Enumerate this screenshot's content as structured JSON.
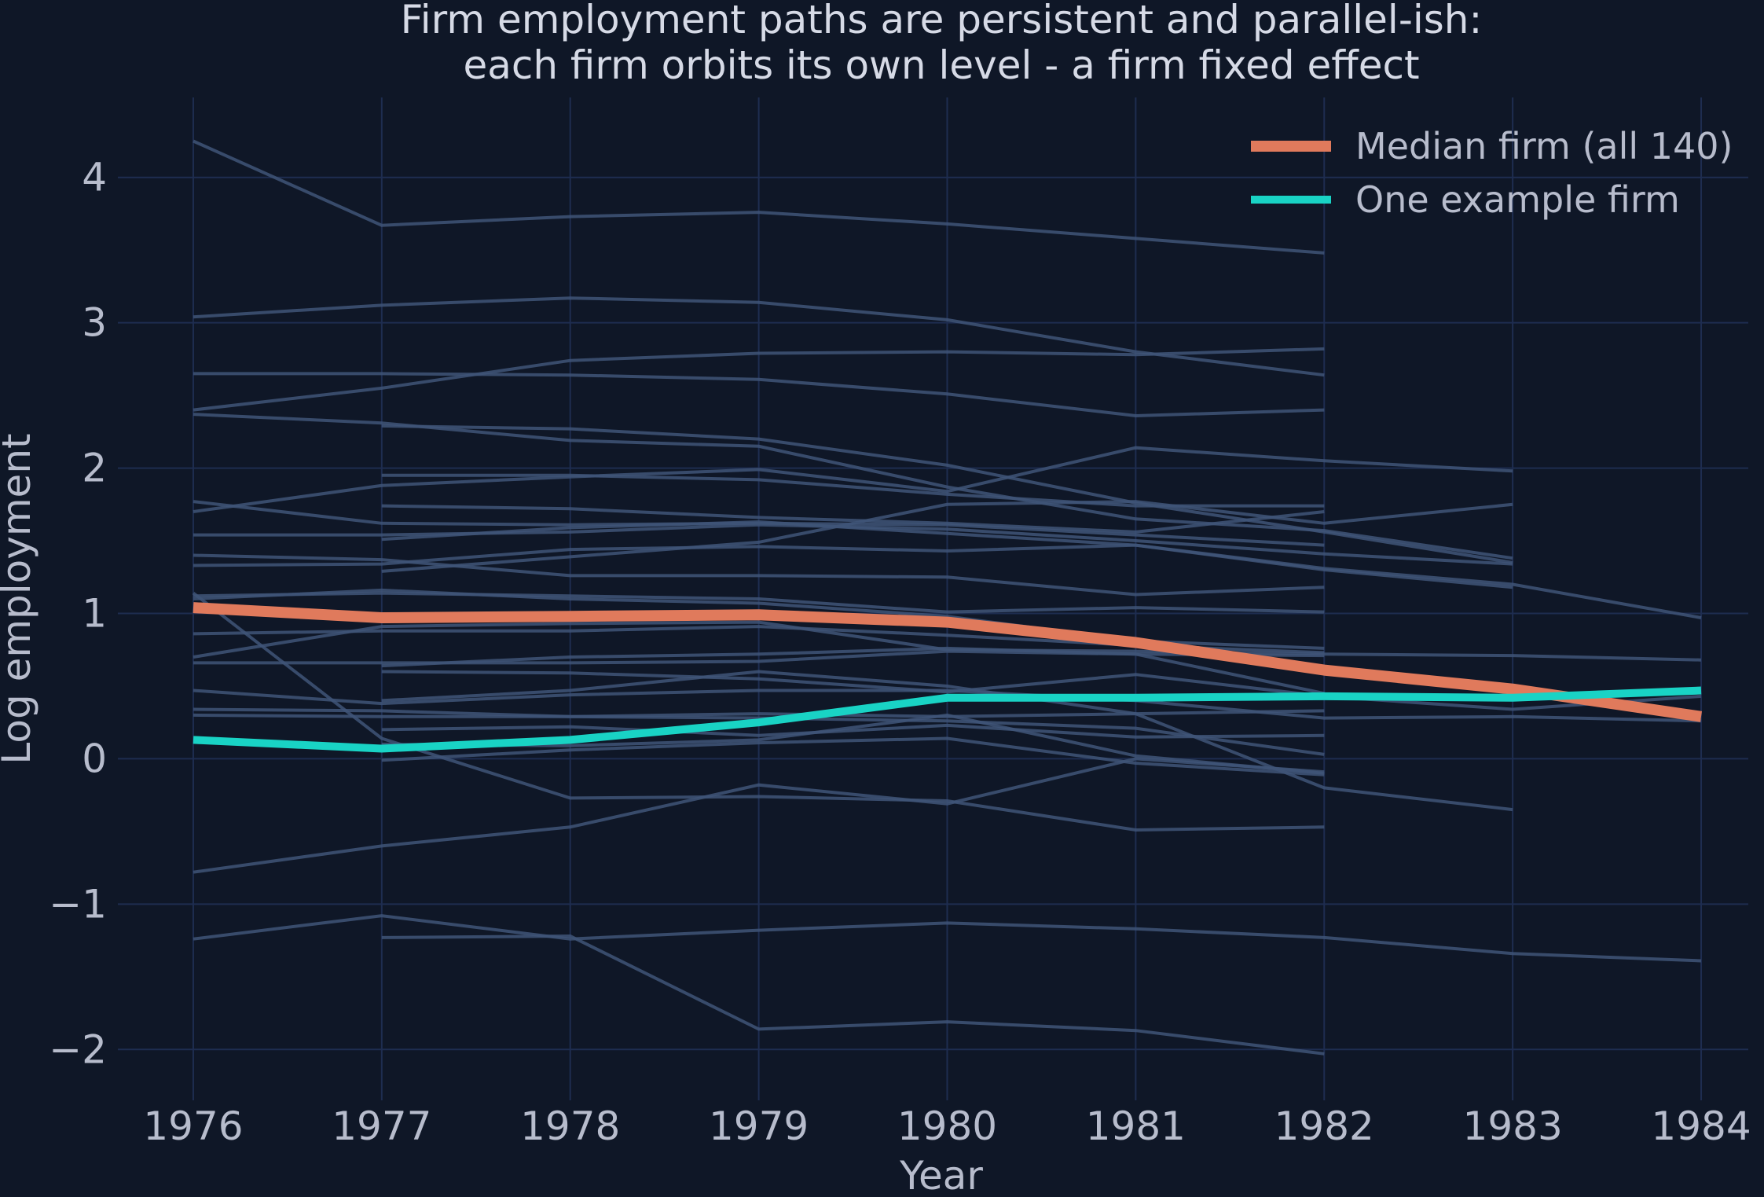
{
  "chart_data": {
    "type": "line",
    "title_lines": [
      "Firm employment paths are persistent and parallel-ish:",
      "each firm orbits its own level - a firm fixed effect"
    ],
    "xlabel": "Year",
    "ylabel": "Log employment",
    "x_ticks": [
      "1976",
      "1977",
      "1978",
      "1979",
      "1980",
      "1981",
      "1982",
      "1983",
      "1984"
    ],
    "y_ticks": [
      4,
      3,
      2,
      1,
      0,
      -1,
      -2
    ],
    "y_tick_labels": [
      "4",
      "3",
      "2",
      "1",
      "0",
      "−1",
      "−2"
    ],
    "xlim": [
      1975.6,
      1984.25
    ],
    "ylim": [
      -2.35,
      4.55
    ],
    "grid": true,
    "legend_position": "top-right",
    "colors": {
      "background": "#0f1727",
      "grid": "#1e2d50",
      "firm_lines": "#3f5578",
      "median": "#e07a5c",
      "example": "#19d3c5"
    },
    "highlight_series": [
      {
        "name": "Median firm (all 140)",
        "color": "#e07a5c",
        "x": [
          1976,
          1977,
          1978,
          1979,
          1980,
          1981,
          1982,
          1983,
          1984
        ],
        "y": [
          1.04,
          0.97,
          0.98,
          0.99,
          0.94,
          0.8,
          0.61,
          0.48,
          0.29
        ]
      },
      {
        "name": "One example firm",
        "color": "#19d3c5",
        "x": [
          1976,
          1977,
          1978,
          1979,
          1980,
          1981,
          1982,
          1983,
          1984
        ],
        "y": [
          0.13,
          0.07,
          0.13,
          0.25,
          0.42,
          0.42,
          0.43,
          0.42,
          0.47
        ]
      }
    ],
    "firm_series": [
      {
        "x": [
          1976,
          1977,
          1978,
          1979,
          1980,
          1981,
          1982
        ],
        "y": [
          4.25,
          3.67,
          3.73,
          3.76,
          3.68,
          3.58,
          3.48
        ]
      },
      {
        "x": [
          1976,
          1977,
          1978,
          1979,
          1980,
          1981,
          1982
        ],
        "y": [
          3.04,
          3.12,
          3.17,
          3.14,
          3.02,
          2.8,
          2.64
        ]
      },
      {
        "x": [
          1976,
          1977,
          1978,
          1979,
          1980,
          1981,
          1982
        ],
        "y": [
          2.65,
          2.65,
          2.64,
          2.61,
          2.51,
          2.36,
          2.4
        ]
      },
      {
        "x": [
          1976,
          1977,
          1978,
          1979,
          1980,
          1981,
          1982
        ],
        "y": [
          2.4,
          2.55,
          2.74,
          2.79,
          2.8,
          2.78,
          2.82
        ]
      },
      {
        "x": [
          1976,
          1977,
          1978,
          1979,
          1980,
          1981,
          1982,
          1983
        ],
        "y": [
          2.37,
          2.31,
          2.19,
          2.15,
          1.87,
          1.65,
          1.57,
          1.38
        ]
      },
      {
        "x": [
          1977,
          1978,
          1979,
          1980,
          1981,
          1982,
          1983
        ],
        "y": [
          2.29,
          2.27,
          2.2,
          2.02,
          1.76,
          1.56,
          1.35
        ]
      },
      {
        "x": [
          1976,
          1977,
          1978,
          1979,
          1980,
          1981,
          1982,
          1983
        ],
        "y": [
          1.7,
          1.88,
          1.94,
          1.99,
          1.84,
          2.14,
          2.05,
          1.98
        ]
      },
      {
        "x": [
          1976,
          1977,
          1978,
          1979,
          1980,
          1981,
          1982
        ],
        "y": [
          1.77,
          1.62,
          1.61,
          1.62,
          1.61,
          1.54,
          1.47
        ]
      },
      {
        "x": [
          1977,
          1978,
          1979,
          1980,
          1981,
          1982
        ],
        "y": [
          1.95,
          1.95,
          1.92,
          1.82,
          1.74,
          1.74
        ]
      },
      {
        "x": [
          1977,
          1978,
          1979,
          1980,
          1981,
          1982
        ],
        "y": [
          1.74,
          1.72,
          1.66,
          1.62,
          1.56,
          1.7
        ]
      },
      {
        "x": [
          1976,
          1977,
          1978,
          1979,
          1980,
          1981,
          1982,
          1983
        ],
        "y": [
          1.54,
          1.54,
          1.56,
          1.61,
          1.58,
          1.5,
          1.41,
          1.34
        ]
      },
      {
        "x": [
          1976,
          1977,
          1978,
          1979,
          1980,
          1981,
          1982
        ],
        "y": [
          1.4,
          1.37,
          1.26,
          1.26,
          1.25,
          1.13,
          1.18
        ]
      },
      {
        "x": [
          1977,
          1978,
          1979,
          1980,
          1981,
          1982,
          1983
        ],
        "y": [
          1.29,
          1.39,
          1.49,
          1.75,
          1.77,
          1.62,
          1.75
        ]
      },
      {
        "x": [
          1976,
          1977,
          1978,
          1979,
          1980,
          1981,
          1982,
          1983,
          1984
        ],
        "y": [
          1.33,
          1.34,
          1.44,
          1.46,
          1.43,
          1.47,
          1.31,
          1.2,
          0.97
        ]
      },
      {
        "x": [
          1977,
          1978,
          1979,
          1980,
          1981,
          1982,
          1983
        ],
        "y": [
          1.51,
          1.59,
          1.63,
          1.55,
          1.47,
          1.3,
          1.18
        ]
      },
      {
        "x": [
          1976,
          1977,
          1978,
          1979,
          1980,
          1981,
          1982
        ],
        "y": [
          1.12,
          1.14,
          1.12,
          1.1,
          1.01,
          1.04,
          1.01
        ]
      },
      {
        "x": [
          1976,
          1977,
          1978,
          1979,
          1980,
          1981,
          1982
        ],
        "y": [
          1.1,
          1.16,
          1.1,
          1.07,
          0.98,
          0.81,
          0.76
        ]
      },
      {
        "x": [
          1976,
          1977,
          1978,
          1979,
          1980,
          1981,
          1982
        ],
        "y": [
          0.86,
          0.88,
          0.88,
          0.91,
          0.85,
          0.78,
          0.73
        ]
      },
      {
        "x": [
          1976,
          1977,
          1978,
          1979,
          1980,
          1981,
          1982,
          1983,
          1984
        ],
        "y": [
          0.7,
          0.91,
          0.93,
          0.94,
          0.75,
          0.74,
          0.72,
          0.71,
          0.68
        ]
      },
      {
        "x": [
          1976,
          1977,
          1978,
          1979,
          1980,
          1981,
          1982
        ],
        "y": [
          0.66,
          0.66,
          0.66,
          0.67,
          0.74,
          0.72,
          0.45
        ]
      },
      {
        "x": [
          1977,
          1978,
          1979,
          1980,
          1981,
          1982
        ],
        "y": [
          0.64,
          0.7,
          0.72,
          0.76,
          0.72,
          0.71
        ]
      },
      {
        "x": [
          1977,
          1978,
          1979,
          1980,
          1981,
          1982,
          1983,
          1984
        ],
        "y": [
          0.6,
          0.59,
          0.55,
          0.46,
          0.58,
          0.43,
          0.34,
          0.43
        ]
      },
      {
        "x": [
          1976,
          1977,
          1978,
          1979,
          1980,
          1981,
          1982,
          1983,
          1984
        ],
        "y": [
          0.47,
          0.38,
          0.44,
          0.47,
          0.47,
          0.4,
          0.28,
          0.29,
          0.26
        ]
      },
      {
        "x": [
          1976,
          1977,
          1978,
          1979,
          1980,
          1981,
          1982
        ],
        "y": [
          0.34,
          0.33,
          0.29,
          0.28,
          0.26,
          0.21,
          0.03
        ]
      },
      {
        "x": [
          1976,
          1977,
          1978,
          1979,
          1980,
          1981,
          1982
        ],
        "y": [
          0.3,
          0.29,
          0.29,
          0.31,
          0.29,
          0.31,
          0.33
        ]
      },
      {
        "x": [
          1977,
          1978,
          1979,
          1980,
          1981,
          1982,
          1983
        ],
        "y": [
          0.4,
          0.47,
          0.6,
          0.5,
          0.31,
          -0.2,
          -0.35
        ]
      },
      {
        "x": [
          1976,
          1977,
          1978,
          1979,
          1980,
          1981,
          1982
        ],
        "y": [
          1.14,
          0.14,
          -0.27,
          -0.26,
          -0.29,
          -0.49,
          -0.47
        ]
      },
      {
        "x": [
          1977,
          1978,
          1979,
          1980,
          1981,
          1982
        ],
        "y": [
          0.2,
          0.22,
          0.16,
          0.23,
          0.15,
          0.16
        ]
      },
      {
        "x": [
          1977,
          1978,
          1979,
          1980,
          1981,
          1982
        ],
        "y": [
          -0.01,
          0.06,
          0.11,
          0.14,
          -0.03,
          -0.11
        ]
      },
      {
        "x": [
          1977,
          1978,
          1979,
          1980,
          1981,
          1982
        ],
        "y": [
          0.1,
          0.09,
          0.13,
          0.3,
          0.02,
          -0.1
        ]
      },
      {
        "x": [
          1976,
          1977,
          1978,
          1979,
          1980,
          1981,
          1982
        ],
        "y": [
          -0.78,
          -0.6,
          -0.47,
          -0.18,
          -0.31,
          0.0,
          -0.09
        ]
      },
      {
        "x": [
          1976,
          1977,
          1978,
          1979,
          1980,
          1981,
          1982,
          1983,
          1984
        ],
        "y": [
          -1.24,
          -1.08,
          -1.24,
          -1.18,
          -1.13,
          -1.17,
          -1.23,
          -1.34,
          -1.39
        ]
      },
      {
        "x": [
          1977,
          1978,
          1979,
          1980,
          1981,
          1982
        ],
        "y": [
          -1.23,
          -1.22,
          -1.86,
          -1.81,
          -1.87,
          -2.03
        ]
      }
    ]
  }
}
